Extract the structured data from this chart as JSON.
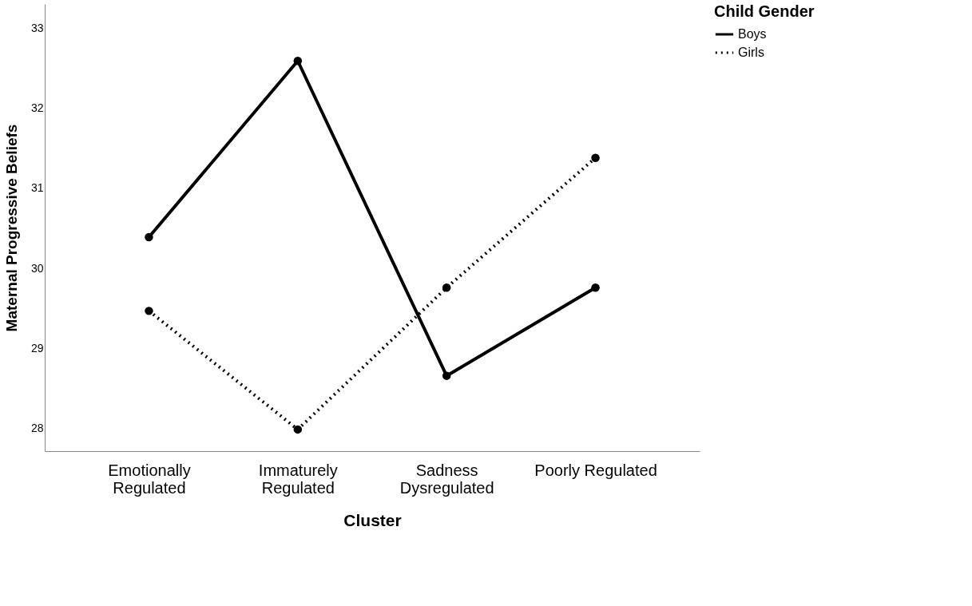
{
  "chart_data": {
    "type": "line",
    "xlabel": "Cluster",
    "ylabel": "Maternal Progressive Beliefs",
    "legend_title": "Child Gender",
    "categories": [
      "Emotionally\nRegulated",
      "Immaturely\nRegulated",
      "Sadness\nDysregulated",
      "Poorly Regulated"
    ],
    "series": [
      {
        "name": "Boys",
        "color": "#000000",
        "line_style": "solid",
        "values": [
          30.39,
          32.59,
          28.66,
          29.76
        ]
      },
      {
        "name": "Girls",
        "color": "#000000",
        "line_style": "dotted",
        "values": [
          29.47,
          27.99,
          29.76,
          31.38
        ]
      }
    ],
    "ylim": [
      27.72,
      33.3
    ],
    "yticks": [
      28,
      29,
      30,
      31,
      32,
      33
    ],
    "grid": false,
    "legend": "top right",
    "marker": "circle"
  }
}
